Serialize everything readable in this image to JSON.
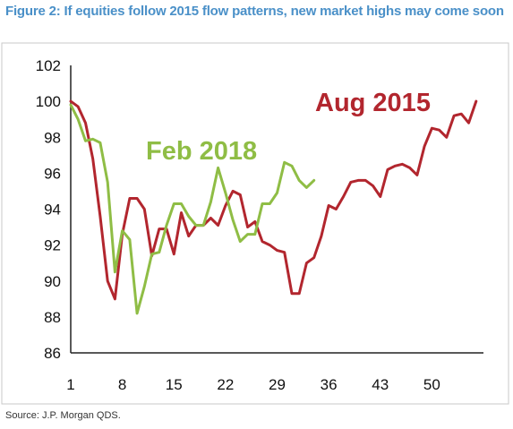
{
  "figure": {
    "title": "Figure 2: If equities follow 2015 flow patterns, new market highs may come soon",
    "source": "Source: J.P. Morgan QDS."
  },
  "colors": {
    "title": "#4a90c8",
    "aug2015": "#b2262e",
    "feb2018": "#8fbd45",
    "frame": "#c8c8c8",
    "axis": "#222222"
  },
  "chart_data": {
    "type": "line",
    "title": "",
    "xlabel": "",
    "ylabel": "",
    "xlim": [
      1,
      57
    ],
    "ylim": [
      86,
      102
    ],
    "grid": false,
    "legend": "none",
    "x_ticks": [
      1,
      8,
      15,
      22,
      29,
      36,
      43,
      50
    ],
    "y_ticks": [
      86,
      88,
      90,
      92,
      94,
      96,
      98,
      100,
      102
    ],
    "x_tick_labels": [
      "1",
      "8",
      "15",
      "22",
      "29",
      "36",
      "43",
      "50"
    ],
    "y_tick_labels": [
      "86",
      "88",
      "90",
      "92",
      "94",
      "96",
      "98",
      "100",
      "102"
    ],
    "series": [
      {
        "name": "Aug 2015",
        "x": [
          1,
          2,
          3,
          4,
          5,
          6,
          7,
          8,
          9,
          10,
          11,
          12,
          13,
          14,
          15,
          16,
          17,
          18,
          19,
          20,
          21,
          22,
          23,
          24,
          25,
          26,
          27,
          28,
          29,
          30,
          31,
          32,
          33,
          34,
          35,
          36,
          37,
          38,
          39,
          40,
          41,
          42,
          43,
          44,
          45,
          46,
          47,
          48,
          49,
          50,
          51,
          52,
          53,
          54,
          55,
          56
        ],
        "values": [
          100.0,
          99.7,
          98.8,
          96.8,
          93.6,
          90.0,
          89.0,
          92.6,
          94.6,
          94.6,
          94.0,
          91.4,
          92.9,
          92.9,
          91.5,
          93.8,
          92.5,
          93.1,
          93.1,
          93.5,
          93.1,
          94.2,
          95.0,
          94.8,
          93.0,
          93.3,
          92.2,
          92.0,
          91.7,
          91.6,
          89.3,
          89.3,
          91.0,
          91.3,
          92.5,
          94.2,
          94.0,
          94.7,
          95.5,
          95.6,
          95.6,
          95.3,
          94.7,
          96.2,
          96.4,
          96.5,
          96.3,
          95.9,
          97.5,
          98.5,
          98.4,
          98.0,
          99.2,
          99.3,
          98.8,
          100.0
        ]
      },
      {
        "name": "Feb 2018",
        "x": [
          1,
          2,
          3,
          4,
          5,
          6,
          7,
          8,
          9,
          10,
          11,
          12,
          13,
          14,
          15,
          16,
          17,
          18,
          19,
          20,
          21,
          22,
          23,
          24,
          25,
          26,
          27,
          28,
          29,
          30,
          31,
          32,
          33,
          34
        ],
        "values": [
          99.8,
          99.0,
          97.8,
          97.9,
          97.7,
          95.5,
          90.5,
          92.8,
          92.3,
          88.2,
          89.7,
          91.5,
          91.6,
          93.1,
          94.3,
          94.3,
          93.6,
          93.1,
          93.1,
          94.4,
          96.3,
          94.9,
          93.4,
          92.2,
          92.6,
          92.6,
          94.3,
          94.3,
          94.9,
          96.6,
          96.4,
          95.6,
          95.2,
          95.6
        ]
      }
    ]
  }
}
